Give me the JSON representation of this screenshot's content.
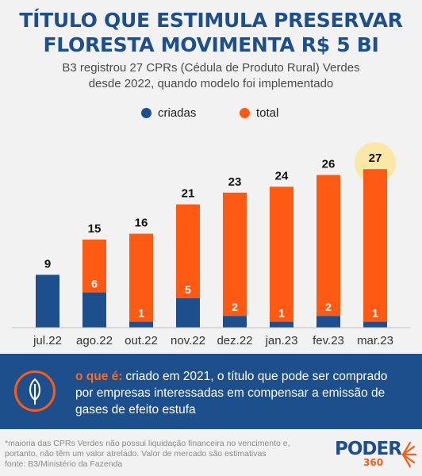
{
  "header": {
    "title_line1": "TÍTULO QUE ESTIMULA PRESERVAR",
    "title_line2": "FLORESTA MOVIMENTA R$ 5 BI",
    "subtitle_line1": "B3 registrou 27 CPRs (Cédula de Produto Rural) Verdes",
    "subtitle_line2": "desde 2022, quando modelo foi implementado"
  },
  "colors": {
    "criadas": "#1d4f8c",
    "total": "#ff5a14",
    "highlight": "#fbe8a6"
  },
  "chart_data": {
    "type": "bar",
    "categories": [
      "jul.22",
      "ago.22",
      "out.22",
      "nov.22",
      "dez.22",
      "jan.23",
      "fev.23",
      "mar.23"
    ],
    "series": [
      {
        "name": "criadas",
        "values": [
          9,
          6,
          1,
          5,
          2,
          1,
          2,
          1
        ]
      },
      {
        "name": "total",
        "values": [
          9,
          15,
          16,
          21,
          23,
          24,
          26,
          27
        ]
      }
    ],
    "legend": [
      "criadas",
      "total"
    ],
    "legend_position": "top-center",
    "highlight_category": "mar.23",
    "ylim": [
      0,
      27
    ],
    "grid": false
  },
  "info": {
    "label": "o que é:",
    "text": "criado em 2021, o título que pode ser comprado por empresas interessadas em compensar a emissão de gases de efeito estufa",
    "icon": "leaf-icon"
  },
  "footer": {
    "note": "*maioria das CPRs Verdes não possui liquidação financeira no vencimento e, portanto, não têm um valor atrelado. Valor de mercado são estimativas",
    "source": "fonte: B3/Ministério da Fazenda",
    "logo_word": "PODER",
    "logo_number": "360"
  }
}
